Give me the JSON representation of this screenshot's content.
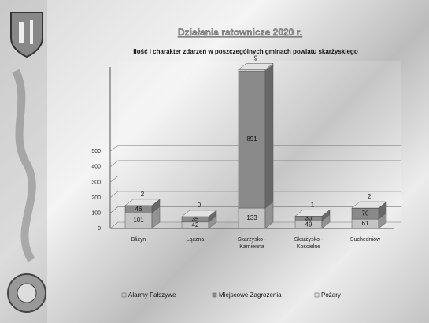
{
  "chart_data": {
    "type": "bar3d_stacked",
    "title": "Działania ratownicze 2020 r.",
    "subtitle": "Ilość i charakter zdarzeń w poszczególnych gminach powiatu skarżyskiego",
    "categories": [
      "Bliżyn",
      "Łączna",
      "Skarżysko - Kamienna",
      "Skarżysko - Kościelne",
      "Suchedniów"
    ],
    "series": [
      {
        "name": "Alarmy Fałszywe",
        "color": "#c4c4c4",
        "values": [
          101,
          42,
          133,
          49,
          61
        ]
      },
      {
        "name": "Miejscowe Zagrożenia",
        "color": "#8a8a8a",
        "values": [
          46,
          35,
          891,
          30,
          70
        ]
      },
      {
        "name": "Pożary",
        "color": "#e2e2e2",
        "values": [
          2,
          0,
          9,
          1,
          2
        ]
      }
    ],
    "ylim": [
      0,
      1050
    ],
    "yticks": [
      0,
      100,
      200,
      300,
      400,
      500
    ],
    "grid": true,
    "legend": "bottom"
  }
}
